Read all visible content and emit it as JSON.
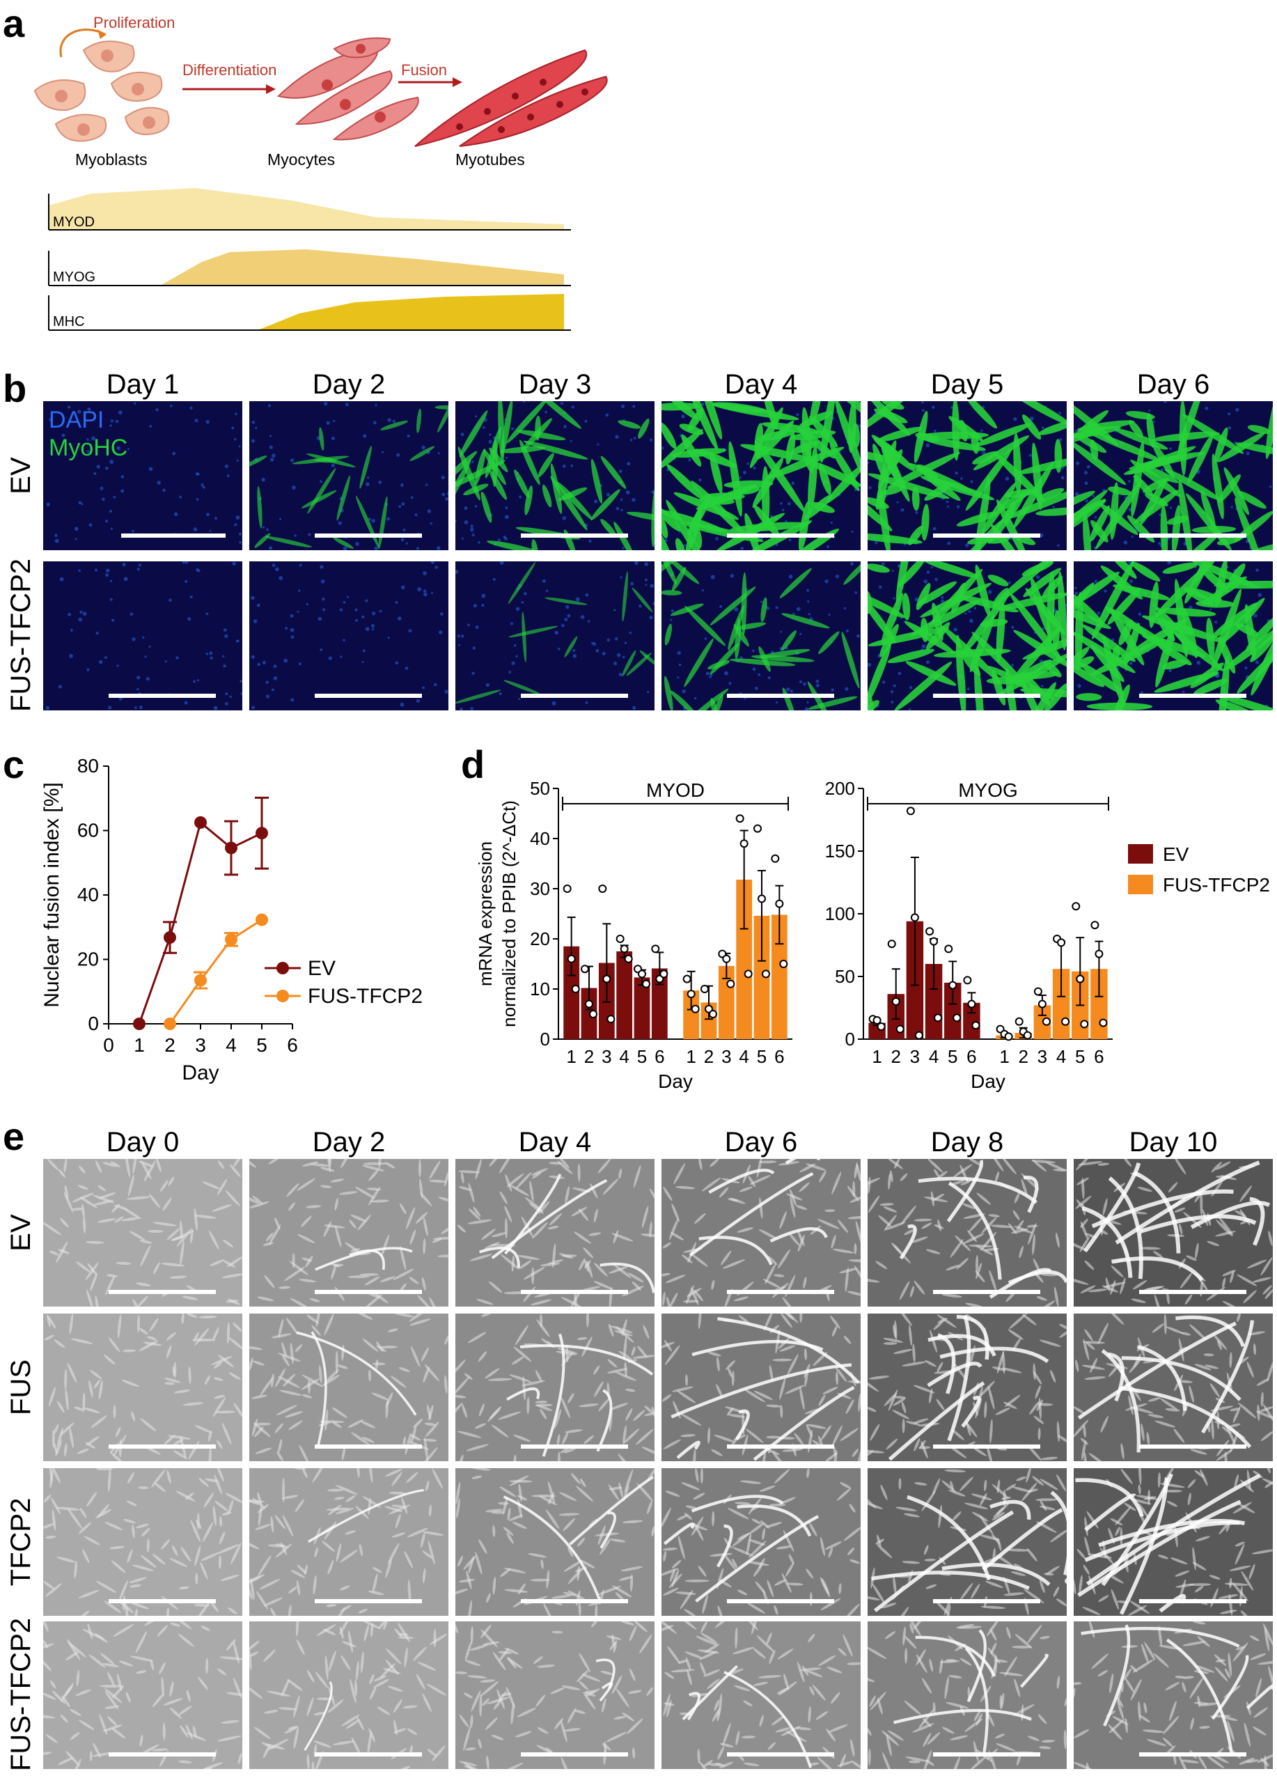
{
  "panel_a": {
    "letter": "a",
    "stages": [
      "Myoblasts",
      "Myocytes",
      "Myotubes"
    ],
    "arrows": [
      "Proliferation",
      "Differentiation",
      "Fusion"
    ],
    "markers": [
      {
        "label": "MYOD",
        "color": "#f7e6a8"
      },
      {
        "label": "MYOG",
        "color": "#f0cf76"
      },
      {
        "label": "MHC",
        "color": "#e8c21a"
      }
    ]
  },
  "panel_b": {
    "letter": "b",
    "days": [
      "Day 1",
      "Day 2",
      "Day 3",
      "Day 4",
      "Day 5",
      "Day 6"
    ],
    "rows": [
      "EV",
      "FUS-TFCP2"
    ],
    "stain_dapi": "DAPI",
    "stain_myohc": "MyoHC",
    "dapi_color": "#2a6cf0",
    "myohc_color": "#27d23a",
    "intensity": {
      "EV": [
        0.0,
        0.25,
        0.55,
        0.9,
        0.85,
        0.8
      ],
      "FUS-TFCP2": [
        0.0,
        0.0,
        0.15,
        0.45,
        0.85,
        0.9
      ]
    }
  },
  "panel_c": {
    "letter": "c",
    "chart_data": {
      "type": "line",
      "xlabel": "Day",
      "ylabel": "Nuclear fusion index [%]",
      "xlim": [
        0,
        6
      ],
      "ylim": [
        0,
        80
      ],
      "xticks": [
        0,
        1,
        2,
        3,
        4,
        5,
        6
      ],
      "yticks": [
        0,
        20,
        40,
        60,
        80
      ],
      "legend_position": "right",
      "series": [
        {
          "name": "EV",
          "color": "#7b0d0d",
          "x": [
            1,
            2,
            3,
            4,
            5
          ],
          "y": [
            0,
            26.8,
            62.5,
            54.6,
            59.2
          ],
          "err": [
            0,
            4.8,
            0,
            8.3,
            11
          ]
        },
        {
          "name": "FUS-TFCP2",
          "color": "#f58a1f",
          "x": [
            2,
            3,
            4,
            5
          ],
          "y": [
            0,
            13.5,
            26.2,
            32.3
          ],
          "err": [
            0,
            2.5,
            2,
            0
          ]
        }
      ]
    }
  },
  "panel_d": {
    "letter": "d",
    "chart_data": [
      {
        "type": "bar",
        "title": "MYOD",
        "xlabel": "Day",
        "ylabel": "mRNA expression normalized to PPIB (2^-ΔCt)",
        "ylim": [
          0,
          50
        ],
        "yticks": [
          0,
          10,
          20,
          30,
          40,
          50
        ],
        "categories": [
          "1",
          "2",
          "3",
          "4",
          "5",
          "6"
        ],
        "series": [
          {
            "name": "EV",
            "color": "#7b0d0d",
            "values": [
              18.5,
              10.2,
              15.2,
              17.5,
              12.3,
              14.1
            ],
            "err": [
              5.8,
              4.3,
              7.8,
              1.2,
              1.5,
              3.2
            ],
            "points": [
              [
                30,
                16,
                10
              ],
              [
                14,
                7,
                5
              ],
              [
                30,
                12,
                4
              ],
              [
                20,
                18,
                16
              ],
              [
                14,
                13,
                11
              ],
              [
                18,
                12,
                13
              ]
            ]
          },
          {
            "name": "FUS-TFCP2",
            "color": "#f58a1f",
            "values": [
              9.7,
              7.3,
              14.6,
              31.8,
              24.6,
              24.8
            ],
            "err": [
              3.8,
              3.3,
              2.5,
              9.8,
              9.0,
              5.8
            ],
            "points": [
              [
                12,
                9,
                6
              ],
              [
                10,
                6,
                5
              ],
              [
                17,
                16,
                11
              ],
              [
                44,
                39,
                13
              ],
              [
                42,
                28,
                13
              ],
              [
                36,
                27,
                15
              ]
            ]
          }
        ]
      },
      {
        "type": "bar",
        "title": "MYOG",
        "xlabel": "Day",
        "ylim": [
          0,
          200
        ],
        "yticks": [
          0,
          50,
          100,
          150,
          200
        ],
        "categories": [
          "1",
          "2",
          "3",
          "4",
          "5",
          "6"
        ],
        "series": [
          {
            "name": "EV",
            "color": "#7b0d0d",
            "values": [
              13,
              36,
              94,
              60,
              45,
              29
            ],
            "err": [
              2,
              20,
              51,
              20,
              17,
              8
            ],
            "points": [
              [
                16,
                15,
                10
              ],
              [
                76,
                30,
                8
              ],
              [
                182,
                97,
                3
              ],
              [
                86,
                78,
                17
              ],
              [
                72,
                43,
                17
              ],
              [
                47,
                28,
                11
              ]
            ]
          },
          {
            "name": "FUS-TFCP2",
            "color": "#f58a1f",
            "values": [
              3,
              5,
              27,
              56,
              54,
              56
            ],
            "err": [
              2,
              4,
              8,
              22,
              27,
              22
            ],
            "points": [
              [
                8,
                4,
                2
              ],
              [
                14,
                6,
                3
              ],
              [
                38,
                28,
                14
              ],
              [
                80,
                77,
                14
              ],
              [
                106,
                48,
                12
              ],
              [
                91,
                68,
                13
              ]
            ]
          }
        ]
      }
    ],
    "legend": [
      {
        "name": "EV",
        "color": "#7b0d0d"
      },
      {
        "name": "FUS-TFCP2",
        "color": "#f58a1f"
      }
    ]
  },
  "panel_e": {
    "letter": "e",
    "days": [
      "Day 0",
      "Day 2",
      "Day 4",
      "Day 6",
      "Day 8",
      "Day 10"
    ],
    "rows": [
      "EV",
      "FUS",
      "TFCP2",
      "FUS-TFCP2"
    ],
    "fusion": {
      "EV": [
        0.0,
        0.2,
        0.35,
        0.5,
        0.7,
        0.95
      ],
      "FUS": [
        0.0,
        0.2,
        0.35,
        0.55,
        0.8,
        0.75
      ],
      "TFCP2": [
        0.0,
        0.1,
        0.3,
        0.5,
        0.8,
        0.9
      ],
      "FUS-TFCP2": [
        0.0,
        0.05,
        0.2,
        0.3,
        0.45,
        0.5
      ]
    }
  }
}
